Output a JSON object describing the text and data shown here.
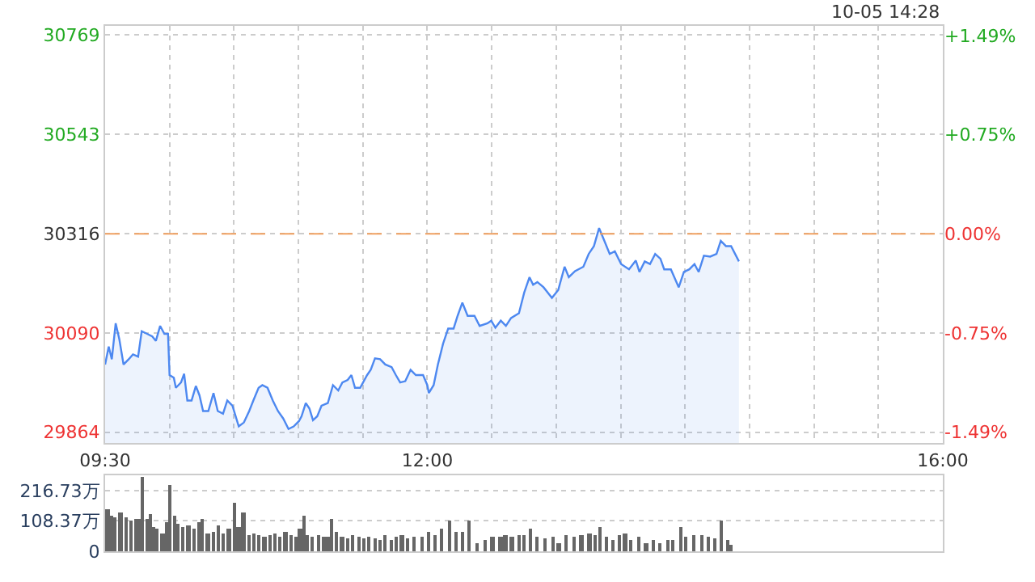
{
  "chart_data": [
    {
      "type": "area",
      "annotations": [
        "10-05 14:28"
      ],
      "x": [
        9.5,
        9.528,
        9.552,
        9.582,
        9.61,
        9.643,
        9.683,
        9.716,
        9.756,
        9.784,
        9.826,
        9.866,
        9.894,
        9.927,
        9.96,
        9.988,
        10.0,
        10.033,
        10.049,
        10.089,
        10.113,
        10.138,
        10.171,
        10.204,
        10.232,
        10.26,
        10.301,
        10.341,
        10.374,
        10.415,
        10.448,
        10.488,
        10.537,
        10.577,
        10.618,
        10.65,
        10.691,
        10.72,
        10.76,
        10.801,
        10.841,
        10.882,
        10.923,
        10.963,
        11.004,
        11.024,
        11.057,
        11.085,
        11.113,
        11.146,
        11.179,
        11.228,
        11.268,
        11.309,
        11.341,
        11.382,
        11.411,
        11.439,
        11.479,
        11.533,
        11.561,
        11.594,
        11.634,
        11.674,
        11.723,
        11.756,
        11.789,
        11.829,
        11.87,
        11.911,
        11.967,
        12.0,
        12.012,
        12.049,
        12.082,
        12.122,
        12.162,
        12.204,
        12.235,
        12.272,
        12.313,
        12.366,
        12.406,
        12.467,
        12.496,
        12.528,
        12.57,
        12.61,
        12.65,
        12.711,
        12.752,
        12.793,
        12.821,
        12.854,
        12.902,
        12.967,
        13.016,
        13.065,
        13.098,
        13.146,
        13.211,
        13.252,
        13.293,
        13.333,
        13.374,
        13.415,
        13.455,
        13.504,
        13.565,
        13.618,
        13.646,
        13.687,
        13.728,
        13.768,
        13.809,
        13.838,
        13.89,
        13.951,
        13.991,
        14.033,
        14.073,
        14.106,
        14.146,
        14.195,
        14.244,
        14.277,
        14.317,
        14.357,
        14.418
      ],
      "series": [
        {
          "color": "#4d88f0",
          "values": [
            30018,
            30059,
            30030,
            30112,
            30076,
            30018,
            30030,
            30041,
            30036,
            30094,
            30088,
            30082,
            30072,
            30106,
            30088,
            30088,
            29994,
            29988,
            29965,
            29977,
            29997,
            29936,
            29936,
            29969,
            29948,
            29912,
            29912,
            29953,
            29912,
            29906,
            29936,
            29924,
            29877,
            29886,
            29912,
            29936,
            29965,
            29971,
            29965,
            29936,
            29912,
            29895,
            29871,
            29877,
            29889,
            29900,
            29930,
            29918,
            29891,
            29900,
            29924,
            29930,
            29971,
            29959,
            29977,
            29983,
            29994,
            29965,
            29965,
            29994,
            30006,
            30032,
            30030,
            30018,
            30012,
            29994,
            29977,
            29980,
            30006,
            29994,
            29994,
            29971,
            29953,
            29971,
            30018,
            30065,
            30100,
            30100,
            30129,
            30159,
            30129,
            30129,
            30106,
            30112,
            30118,
            30102,
            30118,
            30106,
            30124,
            30135,
            30182,
            30217,
            30200,
            30206,
            30194,
            30170,
            30188,
            30241,
            30217,
            30231,
            30241,
            30270,
            30288,
            30329,
            30300,
            30270,
            30276,
            30247,
            30235,
            30255,
            30229,
            30253,
            30247,
            30270,
            30259,
            30235,
            30235,
            30194,
            30229,
            30235,
            30247,
            30229,
            30266,
            30264,
            30270,
            30300,
            30288,
            30288,
            30253
          ]
        }
      ],
      "xlim": [
        9.5,
        16
      ],
      "xticks": [
        {
          "value": 9.5,
          "label": "09:30"
        },
        {
          "value": 10,
          "label": null
        },
        {
          "value": 10.5,
          "label": null
        },
        {
          "value": 11,
          "label": null
        },
        {
          "value": 11.5,
          "label": null
        },
        {
          "value": 12,
          "label": "12:00"
        },
        {
          "value": 12.5,
          "label": null
        },
        {
          "value": 13,
          "label": null
        },
        {
          "value": 13.5,
          "label": null
        },
        {
          "value": 14,
          "label": null
        },
        {
          "value": 14.5,
          "label": null
        },
        {
          "value": 15,
          "label": null
        },
        {
          "value": 15.5,
          "label": null
        },
        {
          "value": 16,
          "label": "16:00"
        }
      ],
      "ylim": [
        29839,
        30790
      ],
      "yticks": [
        29864,
        30090,
        30316,
        30543,
        30769
      ],
      "y2lim": [
        -1.573,
        1.564
      ],
      "y2ticks": [
        {
          "value": -1.49,
          "label": "-1.49%"
        },
        {
          "value": -0.75,
          "label": "-0.75%"
        },
        {
          "value": 0,
          "label": "0.00%"
        },
        {
          "value": 0.75,
          "label": "+0.75%"
        },
        {
          "value": 1.49,
          "label": "+1.49%"
        }
      ],
      "ref_lines": [
        {
          "axis": "y",
          "value": 30316,
          "color": "#f0a060",
          "line_style": "dashed"
        }
      ],
      "grid": true
    },
    {
      "type": "bar",
      "tick_labels": "y",
      "x": [
        9.521,
        9.552,
        9.582,
        9.622,
        9.662,
        9.704,
        9.744,
        9.772,
        9.789,
        9.826,
        9.854,
        9.878,
        9.906,
        9.948,
        9.976,
        10.009,
        10.04,
        10.07,
        10.11,
        10.15,
        10.191,
        10.232,
        10.26,
        10.301,
        10.341,
        10.382,
        10.423,
        10.463,
        10.504,
        10.537,
        10.577,
        10.618,
        10.659,
        10.699,
        10.74,
        10.78,
        10.821,
        10.862,
        10.902,
        10.943,
        10.984,
        11.016,
        11.045,
        11.073,
        11.113,
        11.155,
        11.195,
        11.228,
        11.26,
        11.301,
        11.341,
        11.382,
        11.423,
        11.472,
        11.512,
        11.552,
        11.594,
        11.634,
        11.674,
        11.723,
        11.765,
        11.805,
        11.845,
        11.899,
        11.96,
        12.009,
        12.061,
        12.113,
        12.174,
        12.223,
        12.277,
        12.326,
        12.387,
        12.448,
        12.509,
        12.57,
        12.61,
        12.659,
        12.711,
        12.752,
        12.805,
        12.854,
        12.915,
        12.976,
        13.024,
        13.077,
        13.138,
        13.199,
        13.26,
        13.309,
        13.341,
        13.39,
        13.443,
        13.496,
        13.537,
        13.585,
        13.646,
        13.699,
        13.756,
        13.809,
        13.87,
        13.911,
        13.972,
        14.012,
        14.073,
        14.134,
        14.187,
        14.235,
        14.284,
        14.338,
        14.357
      ],
      "series": [
        {
          "color": "#666666",
          "values": [
            146,
            127,
            121,
            140,
            121,
            107,
            113,
            117,
            264,
            117,
            133,
            88,
            78,
            62,
            101,
            234,
            127,
            98,
            88,
            94,
            78,
            101,
            117,
            62,
            68,
            94,
            62,
            78,
            170,
            88,
            140,
            59,
            62,
            59,
            49,
            59,
            62,
            49,
            68,
            59,
            49,
            78,
            127,
            59,
            49,
            59,
            49,
            49,
            117,
            68,
            49,
            43,
            59,
            49,
            43,
            49,
            43,
            39,
            59,
            39,
            49,
            59,
            43,
            49,
            49,
            68,
            59,
            78,
            107,
            68,
            68,
            107,
            29,
            39,
            49,
            49,
            59,
            49,
            59,
            55,
            78,
            49,
            43,
            49,
            29,
            59,
            49,
            59,
            62,
            59,
            88,
            49,
            39,
            59,
            62,
            39,
            49,
            29,
            39,
            29,
            39,
            39,
            88,
            49,
            59,
            59,
            49,
            43,
            107,
            39,
            20
          ]
        }
      ],
      "xlim": [
        9.5,
        16
      ],
      "ylim": [
        0,
        270
      ],
      "yticks": [
        0,
        {
          "value": 108.37,
          "label": "108.37万"
        },
        {
          "value": 216.73,
          "label": "216.73万"
        }
      ],
      "grid": "y"
    }
  ]
}
